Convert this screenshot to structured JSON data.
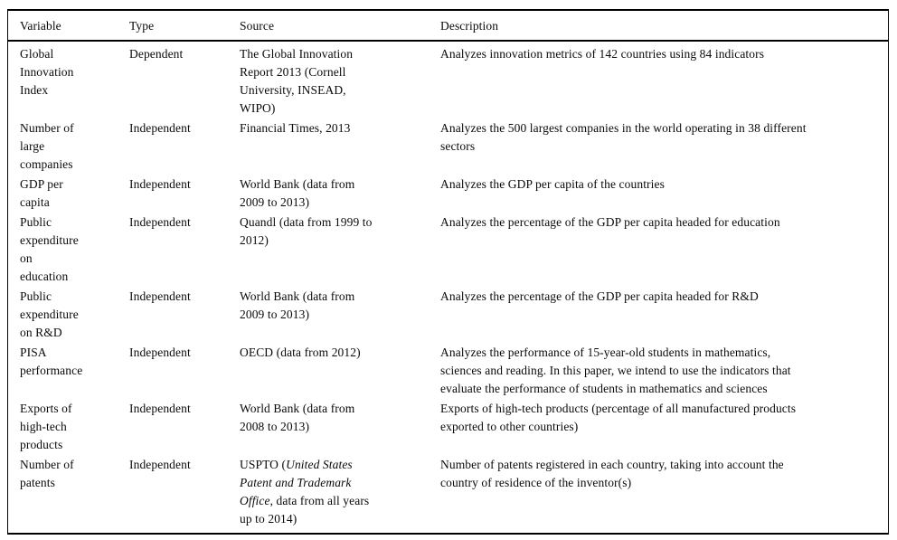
{
  "table": {
    "headers": [
      "Variable",
      "Type",
      "Source",
      "Description"
    ],
    "rows": [
      {
        "variable": "Global\nInnovation\nIndex",
        "type": "Dependent",
        "source": "The Global Innovation\nReport 2013 (Cornell\nUniversity, INSEAD,\nWIPO)",
        "description": "Analyzes innovation metrics of 142 countries using 84 indicators"
      },
      {
        "variable": "Number of\nlarge\ncompanies",
        "type": "Independent",
        "source": "Financial Times, 2013",
        "description": "Analyzes the 500 largest companies in the world operating in 38 different\nsectors"
      },
      {
        "variable": "GDP per\ncapita",
        "type": "Independent",
        "source": "World Bank (data from\n2009 to 2013)",
        "description": "Analyzes the GDP per capita of the countries"
      },
      {
        "variable": "Public\nexpenditure\non\neducation",
        "type": "Independent",
        "source": "Quandl (data from 1999 to\n2012)",
        "description": "Analyzes the percentage of the GDP per capita headed for education"
      },
      {
        "variable": "Public\nexpenditure\non R&D",
        "type": "Independent",
        "source": "World Bank (data from\n2009 to 2013)",
        "description": "Analyzes the percentage of the GDP per capita headed for R&D"
      },
      {
        "variable": "PISA\nperformance",
        "type": "Independent",
        "source": "OECD (data from 2012)",
        "description": "Analyzes the performance of 15-year-old students in mathematics,\nsciences and reading. In this paper, we intend to use the indicators that\nevaluate the performance of students in mathematics and sciences"
      },
      {
        "variable": "Exports of\nhigh-tech\nproducts",
        "type": "Independent",
        "source": "World Bank (data from\n2008 to 2013)",
        "description": "Exports of high-tech products (percentage of all manufactured products\nexported to other countries)"
      },
      {
        "variable": "Number of\npatents",
        "type": "Independent",
        "source_segments": [
          {
            "text": "USPTO (",
            "italic": false
          },
          {
            "text": "United States\nPatent and Trademark\nOffice",
            "italic": true
          },
          {
            "text": ", data from all years\nup to 2014)",
            "italic": false
          }
        ],
        "description": "Number of patents registered in each country, taking into account the\ncountry of residence of the inventor(s)"
      }
    ]
  }
}
